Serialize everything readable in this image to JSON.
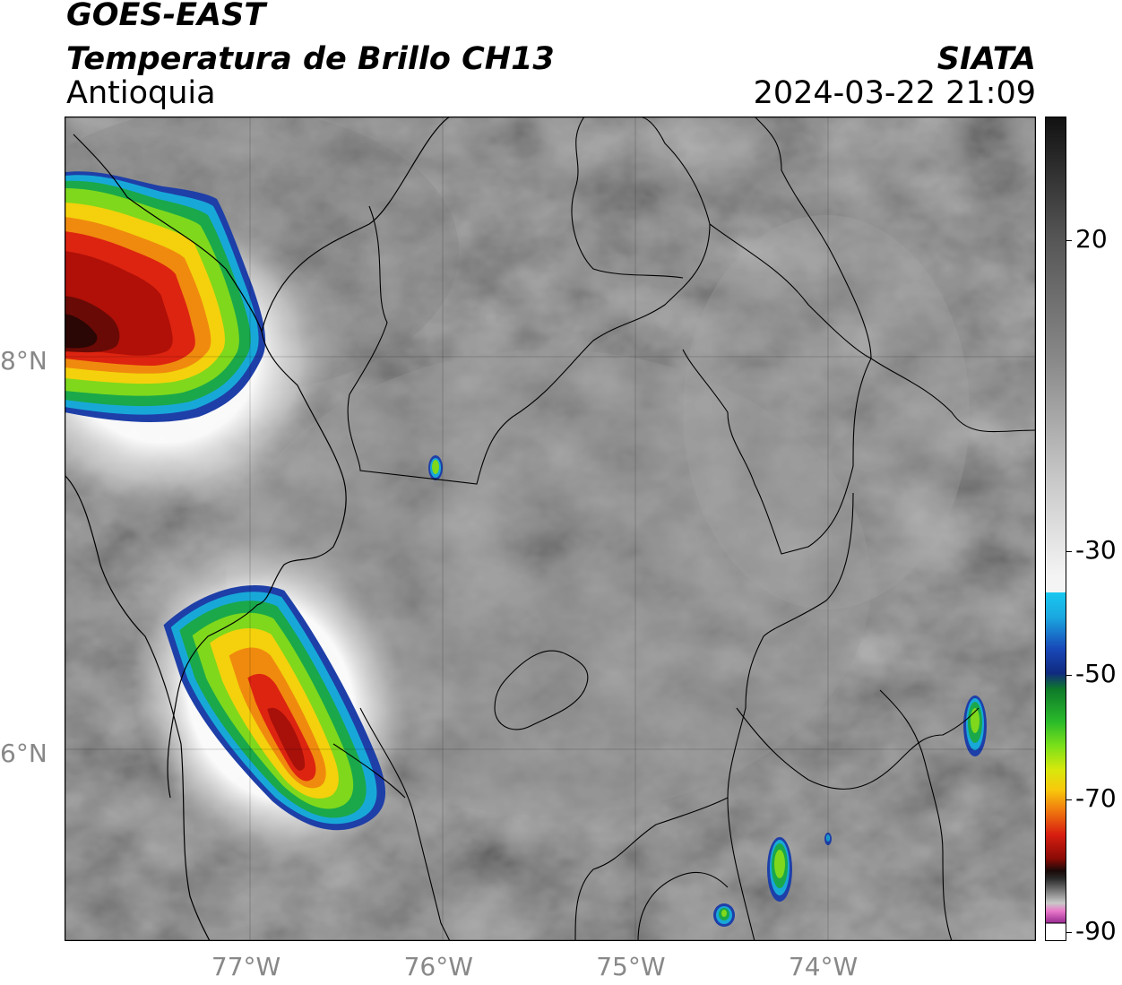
{
  "header": {
    "satellite": "GOES-EAST",
    "product": "Temperatura de Brillo CH13",
    "region": "Antioquia",
    "agency": "SIATA",
    "datetime": "2024-03-22 21:09"
  },
  "map": {
    "lon_range": [
      -77.95,
      -72.9
    ],
    "lat_range": [
      5.05,
      9.25
    ],
    "lon_ticks": [
      {
        "value": -77,
        "label": "77°W"
      },
      {
        "value": -76,
        "label": "76°W"
      },
      {
        "value": -75,
        "label": "75°W"
      },
      {
        "value": -74,
        "label": "74°W"
      }
    ],
    "lat_ticks": [
      {
        "value": 8,
        "label": "8°N"
      },
      {
        "value": 6,
        "label": "6°N"
      }
    ],
    "cold_cloud_tops": [
      {
        "name": "northwest-storm",
        "lon": -77.7,
        "lat": 8.0,
        "min_temp_c": -70
      },
      {
        "name": "west-storm",
        "lon": -76.6,
        "lat": 6.1,
        "min_temp_c": -62
      },
      {
        "name": "small-cell-north",
        "lon": -76.04,
        "lat": 7.48,
        "min_temp_c": -40
      },
      {
        "name": "east-cell",
        "lon": -73.33,
        "lat": 6.12,
        "min_temp_c": -42
      },
      {
        "name": "south-cell-1",
        "lon": -74.28,
        "lat": 5.5,
        "min_temp_c": -42
      },
      {
        "name": "south-cell-2",
        "lon": -74.55,
        "lat": 5.15,
        "min_temp_c": -38
      }
    ]
  },
  "colorbar": {
    "range": [
      -90,
      40
    ],
    "ticks": [
      {
        "value": 20,
        "label": "20"
      },
      {
        "value": -30,
        "label": "-30"
      },
      {
        "value": -50,
        "label": "-50"
      },
      {
        "value": -70,
        "label": "-70"
      },
      {
        "value": -90,
        "label": "-90"
      }
    ]
  }
}
